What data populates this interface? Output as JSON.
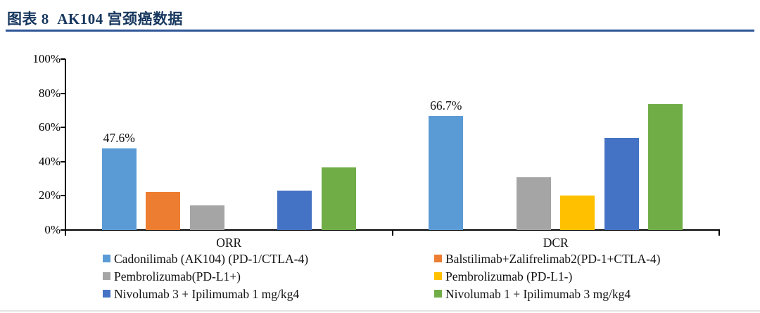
{
  "header": {
    "title": "图表 8  AK104 宫颈癌数据"
  },
  "chart_data": {
    "type": "bar",
    "title": "AK104 宫颈癌数据",
    "categories": [
      "ORR",
      "DCR"
    ],
    "series": [
      {
        "name": "Cadonilimab (AK104) (PD-1/CTLA-4)",
        "color": "#5B9BD5",
        "values": [
          47.6,
          66.7
        ],
        "labels": [
          "47.6%",
          "66.7%"
        ]
      },
      {
        "name": "Balstilimab+Zalifrelimab2(PD-1+CTLA-4)",
        "color": "#ED7D31",
        "values": [
          22.2,
          null
        ],
        "labels": [
          null,
          null
        ]
      },
      {
        "name": "Pembrolizumab(PD-L1+)",
        "color": "#A5A5A5",
        "values": [
          14.6,
          31.0
        ],
        "labels": [
          null,
          null
        ]
      },
      {
        "name": "Pembrolizumab (PD-L1-)",
        "color": "#FFC000",
        "values": [
          null,
          20.0
        ],
        "labels": [
          null,
          null
        ]
      },
      {
        "name": "Nivolumab 3 + Ipilimumab 1 mg/kg4",
        "color": "#4472C4",
        "values": [
          23.1,
          53.8
        ],
        "labels": [
          null,
          null
        ]
      },
      {
        "name": "Nivolumab 1 + Ipilimumab 3 mg/kg4",
        "color": "#70AD47",
        "values": [
          36.8,
          73.7
        ],
        "labels": [
          null,
          null
        ]
      }
    ],
    "ylim": [
      0,
      100
    ],
    "ytick_labels": [
      "0%",
      "20%",
      "40%",
      "60%",
      "80%",
      "100%"
    ],
    "grid": false,
    "legend_position": "bottom",
    "legend_columns": [
      [
        0,
        2,
        4
      ],
      [
        1,
        3,
        5
      ]
    ]
  },
  "colors": {
    "title_text": "#17375E",
    "title_rule": "#2F5597",
    "axis": "#000000",
    "label_text": "#111111"
  }
}
